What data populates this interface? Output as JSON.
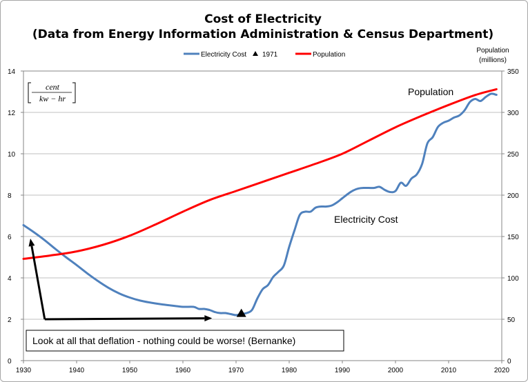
{
  "chart_data": {
    "type": "line",
    "title_line1": "Cost of Electricity",
    "title_line2": "(Data from Energy Information Administration & Census Department)",
    "legend": {
      "position": "top",
      "items": [
        {
          "label": "Electricity Cost",
          "color": "#4f81bd",
          "kind": "line"
        },
        {
          "label": "1971",
          "color": "#000000",
          "kind": "triangle"
        },
        {
          "label": "Population",
          "color": "#ff0000",
          "kind": "line"
        }
      ]
    },
    "x_axis": {
      "min": 1930,
      "max": 2020,
      "ticks": [
        "1930",
        "1940",
        "1950",
        "1960",
        "1970",
        "1980",
        "1990",
        "2000",
        "2010",
        "2020"
      ]
    },
    "y_left": {
      "min": 0,
      "max": 14,
      "ticks": [
        "0",
        "2",
        "4",
        "6",
        "8",
        "10",
        "12",
        "14"
      ],
      "unit_numerator": "cent",
      "unit_denominator": "kw − hr"
    },
    "y_right": {
      "min": 0,
      "max": 350,
      "ticks": [
        "0",
        "50",
        "100",
        "150",
        "200",
        "250",
        "300",
        "350"
      ],
      "label_line1": "Population",
      "label_line2": "(millions)"
    },
    "grid": {
      "horizontal": true,
      "vertical": false
    },
    "series": [
      {
        "name": "Electricity Cost",
        "axis": "left",
        "color": "#4f81bd",
        "x": [
          1930,
          1932,
          1934,
          1936,
          1938,
          1940,
          1942,
          1944,
          1946,
          1948,
          1950,
          1952,
          1954,
          1956,
          1958,
          1960,
          1962,
          1963,
          1964,
          1965,
          1966,
          1967,
          1968,
          1969,
          1970,
          1971,
          1972,
          1973,
          1974,
          1975,
          1976,
          1977,
          1978,
          1979,
          1980,
          1981,
          1982,
          1983,
          1984,
          1985,
          1986,
          1987,
          1988,
          1989,
          1990,
          1991,
          1992,
          1993,
          1994,
          1995,
          1996,
          1997,
          1998,
          1999,
          2000,
          2001,
          2002,
          2003,
          2004,
          2005,
          2006,
          2007,
          2008,
          2009,
          2010,
          2011,
          2012,
          2013,
          2014,
          2015,
          2016,
          2017,
          2018,
          2019
        ],
        "y": [
          6.55,
          6.2,
          5.82,
          5.4,
          5.0,
          4.62,
          4.22,
          3.85,
          3.52,
          3.25,
          3.05,
          2.9,
          2.8,
          2.72,
          2.66,
          2.6,
          2.6,
          2.5,
          2.5,
          2.45,
          2.35,
          2.3,
          2.3,
          2.25,
          2.2,
          2.25,
          2.3,
          2.45,
          3.0,
          3.45,
          3.65,
          4.05,
          4.3,
          4.6,
          5.5,
          6.3,
          7.05,
          7.2,
          7.2,
          7.4,
          7.45,
          7.45,
          7.5,
          7.65,
          7.85,
          8.05,
          8.22,
          8.32,
          8.35,
          8.35,
          8.35,
          8.4,
          8.25,
          8.15,
          8.2,
          8.6,
          8.45,
          8.8,
          9.0,
          9.5,
          10.5,
          10.8,
          11.3,
          11.5,
          11.6,
          11.75,
          11.85,
          12.1,
          12.5,
          12.65,
          12.55,
          12.75,
          12.9,
          12.85
        ]
      },
      {
        "name": "Population",
        "axis": "right",
        "color": "#ff0000",
        "x": [
          1930,
          1935,
          1940,
          1945,
          1950,
          1955,
          1960,
          1965,
          1970,
          1975,
          1980,
          1985,
          1990,
          1995,
          2000,
          2005,
          2010,
          2015,
          2019
        ],
        "y": [
          123,
          127,
          132,
          140,
          151,
          165,
          180,
          194,
          205,
          216,
          227,
          238,
          250,
          266,
          282,
          296,
          309,
          321,
          328
        ]
      }
    ],
    "points": [
      {
        "name": "1971",
        "x": 1971,
        "y": 2.28,
        "axis": "left",
        "marker": "triangle",
        "color": "#000000"
      }
    ],
    "annotations": {
      "population": "Population",
      "electricity": "Electricity Cost",
      "box": "Look at all that deflation - nothing could be worse! (Bernanke)"
    },
    "arrows": [
      {
        "from": [
          1934,
          2.0
        ],
        "to": [
          1931.3,
          5.9
        ]
      },
      {
        "from": [
          1934,
          2.0
        ],
        "to": [
          1965.5,
          2.05
        ]
      }
    ]
  }
}
